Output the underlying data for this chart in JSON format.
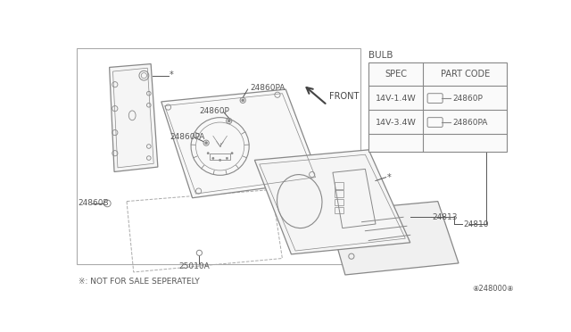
{
  "bg_color": "#ffffff",
  "diagram_bg": "#ffffff",
  "line_color": "#888888",
  "dark_line": "#444444",
  "text_color": "#555555",
  "footnote": "※: NOT FOR SALE SEPERATELY",
  "diagram_code": "⑧248000⑧",
  "bulb_label": "BULB",
  "table_headers": [
    "SPEC",
    "PART CODE"
  ],
  "table_rows": [
    {
      "spec": "14V-1.4W",
      "part_code": "24860P"
    },
    {
      "spec": "14V-3.4W",
      "part_code": "24860PA"
    }
  ]
}
